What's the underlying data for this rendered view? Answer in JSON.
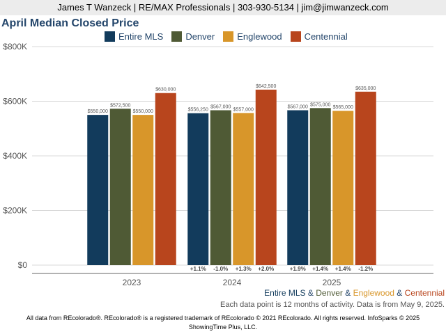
{
  "header": {
    "text": "James T Wanzeck | RE/MAX Professionals | 303-930-5134 | jim@jimwanzeck.com"
  },
  "colors": {
    "entire_mls": "#123b5c",
    "denver": "#4f5a35",
    "englewood": "#d8962a",
    "centennial": "#b8451d",
    "title": "#24466b"
  },
  "chart_data": {
    "type": "bar",
    "title": "April Median Closed Price",
    "categories": [
      "2023",
      "2024",
      "2025"
    ],
    "series": [
      {
        "name": "Entire MLS",
        "color": "#123b5c",
        "values": [
          550000,
          556250,
          567000
        ],
        "labels": [
          "$550,000",
          "$556,250",
          "$567,000"
        ],
        "changes": [
          "",
          "+1.1%",
          "+1.9%"
        ]
      },
      {
        "name": "Denver",
        "color": "#4f5a35",
        "values": [
          572500,
          567000,
          575000
        ],
        "labels": [
          "$572,500",
          "$567,000",
          "$575,000"
        ],
        "changes": [
          "",
          "-1.0%",
          "+1.4%"
        ]
      },
      {
        "name": "Englewood",
        "color": "#d8962a",
        "values": [
          550000,
          557000,
          565000
        ],
        "labels": [
          "$550,000",
          "$557,000",
          "$565,000"
        ],
        "changes": [
          "",
          "+1.3%",
          "+1.4%"
        ]
      },
      {
        "name": "Centennial",
        "color": "#b8451d",
        "values": [
          630000,
          642500,
          635000
        ],
        "labels": [
          "$630,000",
          "$642,500",
          "$635,000"
        ],
        "changes": [
          "",
          "+2.0%",
          "-1.2%"
        ]
      }
    ],
    "y_ticks": [
      {
        "value": 0,
        "label": "$0"
      },
      {
        "value": 200000,
        "label": "$200K"
      },
      {
        "value": 400000,
        "label": "$400K"
      },
      {
        "value": 600000,
        "label": "$600K"
      },
      {
        "value": 800000,
        "label": "$800K"
      }
    ],
    "ylim": [
      0,
      800000
    ],
    "grid": true,
    "legend_position": "top"
  },
  "caption": {
    "series": [
      "Entire MLS",
      "Denver",
      "Englewood",
      "Centennial"
    ],
    "separator": " & ",
    "note": "Each data point is 12 months of activity. Data is from May 9, 2025."
  },
  "footer": {
    "line1": "All data from REcolorado®. REcolorado® is a registered trademark of REcolorado © 2021 REcolorado. All rights reserved. InfoSparks © 2025",
    "line2": "ShowingTime Plus, LLC."
  }
}
